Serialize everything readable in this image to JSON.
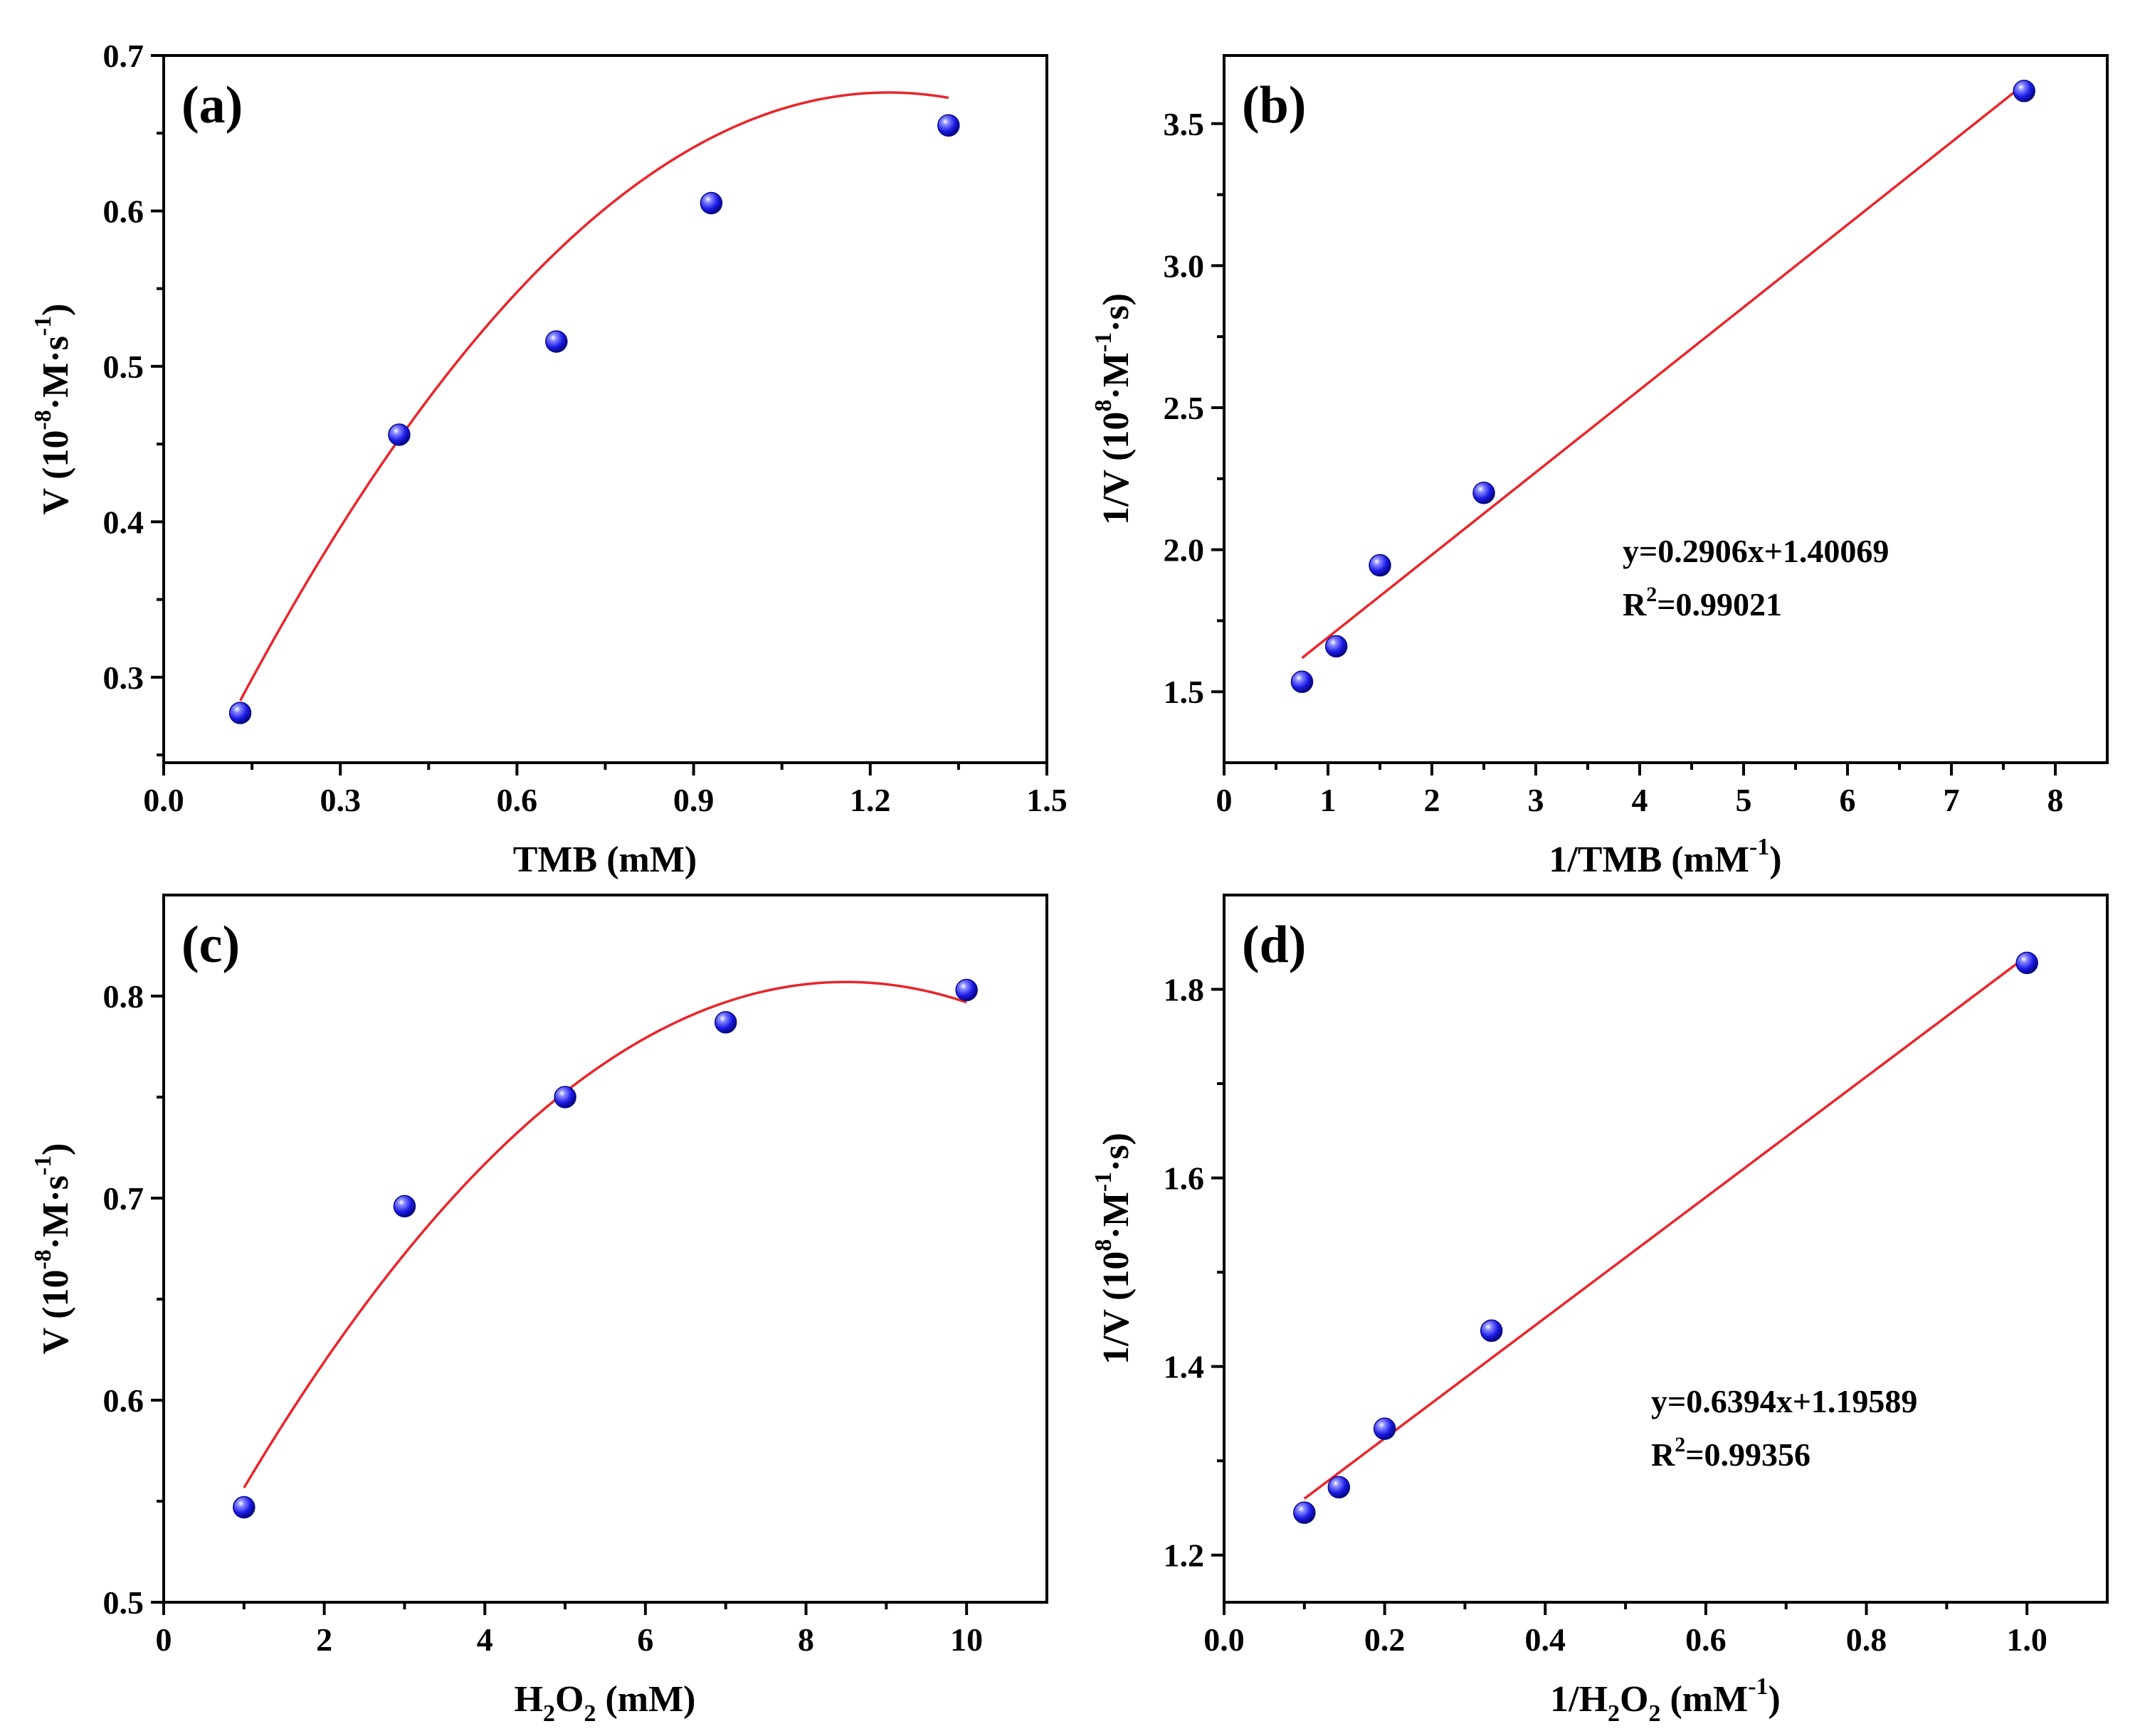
{
  "chart_data": [
    {
      "panel": "(a)",
      "type": "scatter",
      "xlabel": {
        "main": "TMB (mM)"
      },
      "ylabel": {
        "pre": "V (10",
        "sup1": "-8",
        "mid": "·M·s",
        "sup2": "-1",
        "post": ")"
      },
      "xlim": [
        0.0,
        1.5
      ],
      "ylim": [
        0.245,
        0.7
      ],
      "xticks": [
        0.0,
        0.3,
        0.6,
        0.9,
        1.2,
        1.5
      ],
      "xticklabels": [
        "0.0",
        "0.3",
        "0.6",
        "0.9",
        "1.2",
        "1.5"
      ],
      "yticks": [
        0.3,
        0.4,
        0.5,
        0.6,
        0.7
      ],
      "yticklabels": [
        "0.3",
        "0.4",
        "0.5",
        "0.6",
        "0.7"
      ],
      "points": {
        "x": [
          0.13,
          0.4,
          0.667,
          0.93,
          1.333
        ],
        "y": [
          0.277,
          0.456,
          0.516,
          0.605,
          0.655
        ]
      },
      "fit": {
        "kind": "quadratic",
        "coeffs": [
          0.187,
          0.795,
          -0.323
        ],
        "xrange": [
          0.13,
          1.333
        ]
      },
      "marker_color": "#1a1ae6",
      "fit_color": "#e8262b"
    },
    {
      "panel": "(b)",
      "type": "scatter",
      "xlabel": {
        "pre": "1/TMB (mM",
        "sup": "-1",
        "post": ")"
      },
      "ylabel": {
        "pre": "1/V (10",
        "sup1": "8",
        "mid": "·M",
        "sup2": "-1",
        "post": "·s)"
      },
      "xlim": [
        0,
        8.5
      ],
      "ylim": [
        1.25,
        3.74
      ],
      "xticks": [
        0,
        1,
        2,
        3,
        4,
        5,
        6,
        7,
        8
      ],
      "xticklabels": [
        "0",
        "1",
        "2",
        "3",
        "4",
        "5",
        "6",
        "7",
        "8"
      ],
      "yticks": [
        1.5,
        2.0,
        2.5,
        3.0,
        3.5
      ],
      "yticklabels": [
        "1.5",
        "2.0",
        "2.5",
        "3.0",
        "3.5"
      ],
      "points": {
        "x": [
          0.75,
          1.08,
          1.5,
          2.5,
          7.7
        ],
        "y": [
          1.535,
          1.66,
          1.945,
          2.2,
          3.615
        ]
      },
      "fit": {
        "kind": "linear",
        "coeffs": [
          1.40069,
          0.2906
        ],
        "xrange": [
          0.75,
          7.7
        ]
      },
      "annotation": {
        "eq": "y=0.2906x+1.40069",
        "r2_pre": "R",
        "r2_sup": "2",
        "r2_post": "=0.99021"
      },
      "marker_color": "#1a1ae6",
      "fit_color": "#e8262b"
    },
    {
      "panel": "(c)",
      "type": "scatter",
      "xlabel": {
        "pre": "H",
        "sub": "2",
        "mid": "O",
        "sub2": "2",
        "post": " (mM)"
      },
      "ylabel": {
        "pre": "V (10",
        "sup1": "-8",
        "mid": "·M·s",
        "sup2": "-1",
        "post": ")"
      },
      "xlim": [
        0,
        11
      ],
      "ylim": [
        0.5,
        0.85
      ],
      "xticks": [
        0,
        2,
        4,
        6,
        8,
        10
      ],
      "xticklabels": [
        "0",
        "2",
        "4",
        "6",
        "8",
        "10"
      ],
      "yticks": [
        0.5,
        0.6,
        0.7,
        0.8
      ],
      "yticklabels": [
        "0.5",
        "0.6",
        "0.7",
        "0.8"
      ],
      "points": {
        "x": [
          1,
          3,
          5,
          7,
          10
        ],
        "y": [
          0.547,
          0.696,
          0.75,
          0.787,
          0.803
        ]
      },
      "fit": {
        "kind": "quadratic",
        "coeffs": [
          0.4854,
          0.0757,
          -0.004455
        ],
        "xrange": [
          1,
          10
        ]
      },
      "marker_color": "#1a1ae6",
      "fit_color": "#e8262b"
    },
    {
      "panel": "(d)",
      "type": "scatter",
      "xlabel": {
        "pre": "1/H",
        "sub": "2",
        "mid": "O",
        "sub2": "2",
        "post": " (mM",
        "sup": "-1",
        "post2": ")"
      },
      "ylabel": {
        "pre": "1/V (10",
        "sup1": "8",
        "mid": "·M",
        "sup2": "-1",
        "post": "·s)"
      },
      "xlim": [
        0.0,
        1.1
      ],
      "ylim": [
        1.15,
        1.9
      ],
      "xticks": [
        0.0,
        0.2,
        0.4,
        0.6,
        0.8,
        1.0
      ],
      "xticklabels": [
        "0.0",
        "0.2",
        "0.4",
        "0.6",
        "0.8",
        "1.0"
      ],
      "yticks": [
        1.2,
        1.4,
        1.6,
        1.8
      ],
      "yticklabels": [
        "1.2",
        "1.4",
        "1.6",
        "1.8"
      ],
      "points": {
        "x": [
          0.1,
          0.143,
          0.2,
          0.333,
          1.0
        ],
        "y": [
          1.245,
          1.272,
          1.334,
          1.438,
          1.828
        ]
      },
      "fit": {
        "kind": "linear",
        "coeffs": [
          1.19589,
          0.6394
        ],
        "xrange": [
          0.1,
          1.0
        ]
      },
      "annotation": {
        "eq": "y=0.6394x+1.19589",
        "r2_pre": "R",
        "r2_sup": "2",
        "r2_post": "=0.99356"
      },
      "marker_color": "#1a1ae6",
      "fit_color": "#e8262b"
    }
  ]
}
